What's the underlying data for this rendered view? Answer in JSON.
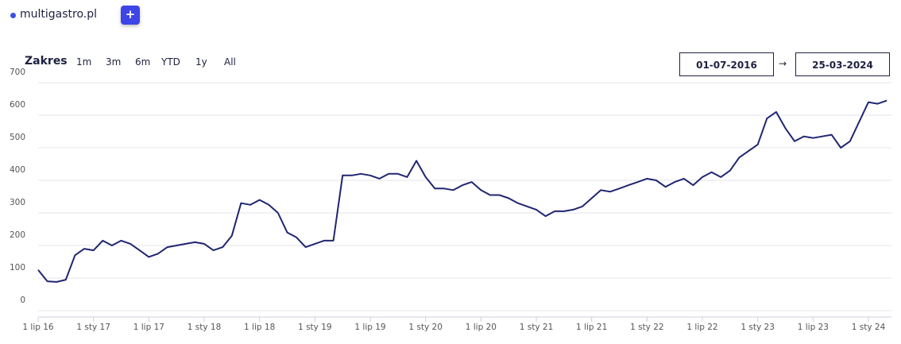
{
  "header": {
    "site": "multigastro.pl",
    "add_button": "+"
  },
  "controls": {
    "range_label": "Zakres",
    "ranges": [
      "1m",
      "3m",
      "6m",
      "YTD",
      "1y",
      "All"
    ],
    "date_from": "01-07-2016",
    "date_separator": "→",
    "date_to": "25-03-2024"
  },
  "chart_data": {
    "type": "line",
    "categories": [
      "1 lip 16",
      null,
      null,
      null,
      null,
      null,
      "1 sty 17",
      null,
      null,
      null,
      null,
      null,
      "1 lip 17",
      null,
      null,
      null,
      null,
      null,
      "1 sty 18",
      null,
      null,
      null,
      null,
      null,
      "1 lip 18",
      null,
      null,
      null,
      null,
      null,
      "1 sty 19",
      null,
      null,
      null,
      null,
      null,
      "1 lip 19",
      null,
      null,
      null,
      null,
      null,
      "1 sty 20",
      null,
      null,
      null,
      null,
      null,
      "1 lip 20",
      null,
      null,
      null,
      null,
      null,
      "1 sty 21",
      null,
      null,
      null,
      null,
      null,
      "1 lip 21",
      null,
      null,
      null,
      null,
      null,
      "1 sty 22",
      null,
      null,
      null,
      null,
      null,
      "1 lip 22",
      null,
      null,
      null,
      null,
      null,
      "1 sty 23",
      null,
      null,
      null,
      null,
      null,
      "1 lip 23",
      null,
      null,
      null,
      null,
      null,
      "1 sty 24",
      null,
      null
    ],
    "series": [
      {
        "color": "#1f2670",
        "values": [
          125,
          90,
          88,
          95,
          170,
          190,
          185,
          215,
          200,
          215,
          205,
          185,
          165,
          175,
          195,
          200,
          205,
          210,
          205,
          185,
          195,
          230,
          330,
          325,
          340,
          325,
          300,
          240,
          225,
          195,
          205,
          215,
          215,
          415,
          415,
          420,
          415,
          405,
          420,
          420,
          410,
          460,
          410,
          375,
          375,
          370,
          385,
          395,
          370,
          355,
          355,
          345,
          330,
          320,
          310,
          290,
          305,
          305,
          310,
          320,
          345,
          370,
          365,
          375,
          385,
          395,
          405,
          400,
          380,
          395,
          405,
          385,
          410,
          425,
          410,
          430,
          470,
          490,
          510,
          590,
          610,
          560,
          520,
          535,
          530,
          535,
          540,
          500,
          520,
          580,
          640,
          635,
          645
        ]
      }
    ],
    "ylim": [
      0,
      700
    ],
    "yticks": [
      0,
      100,
      200,
      300,
      400,
      500,
      600,
      700
    ],
    "grid": true
  }
}
